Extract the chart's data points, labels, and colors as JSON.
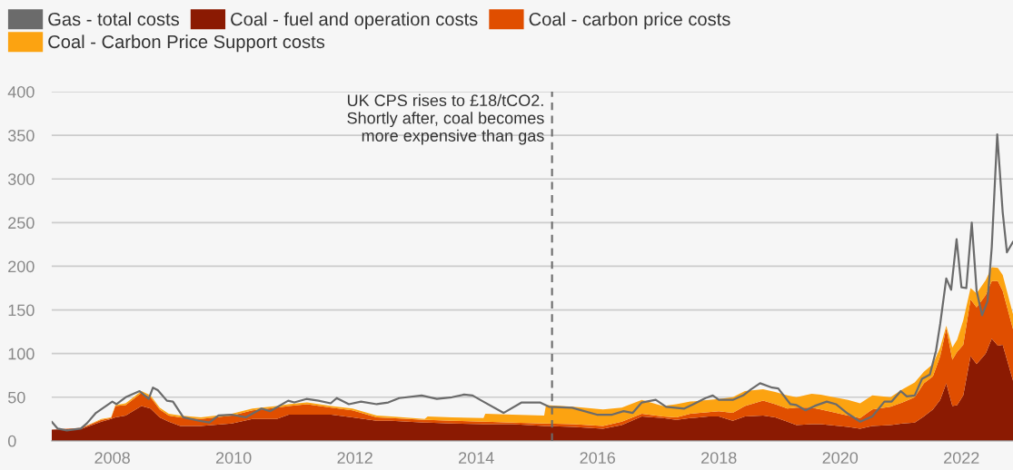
{
  "chart_data": {
    "type": "area",
    "stacked": true,
    "x": [
      2007.0,
      2007.5,
      2007.82,
      2007.98,
      2008.05,
      2008.22,
      2008.48,
      2008.63,
      2008.78,
      2008.93,
      2009.12,
      2009.46,
      2009.97,
      2010.31,
      2010.71,
      2010.91,
      2011.21,
      2011.61,
      2011.96,
      2012.36,
      2012.6,
      2013.15,
      2013.2,
      2013.6,
      2014.12,
      2014.15,
      2014.6,
      2015.12,
      2015.15,
      2015.6,
      2016.09,
      2016.4,
      2016.73,
      2017.08,
      2017.3,
      2017.53,
      2017.83,
      2018.0,
      2018.23,
      2018.43,
      2018.73,
      2018.93,
      2019.13,
      2019.28,
      2019.53,
      2019.68,
      2020.13,
      2020.33,
      2020.53,
      2020.83,
      2021.03,
      2021.23,
      2021.38,
      2021.53,
      2021.65,
      2021.75,
      2021.85,
      2021.93,
      2022.03,
      2022.15,
      2022.25,
      2022.4,
      2022.5,
      2022.6,
      2022.68,
      2022.85
    ],
    "series": [
      {
        "name": "Gas - total costs",
        "type": "line",
        "color": "#6b6b6b",
        "x": [
          2007.0,
          2007.1,
          2007.25,
          2007.48,
          2007.58,
          2007.73,
          2008.0,
          2008.07,
          2008.22,
          2008.45,
          2008.6,
          2008.67,
          2008.75,
          2008.9,
          2009.0,
          2009.17,
          2009.43,
          2009.6,
          2009.75,
          2009.97,
          2010.2,
          2010.46,
          2010.6,
          2010.9,
          2011.0,
          2011.2,
          2011.4,
          2011.6,
          2011.7,
          2011.9,
          2012.1,
          2012.36,
          2012.55,
          2012.73,
          2013.1,
          2013.35,
          2013.6,
          2013.8,
          2013.94,
          2014.09,
          2014.45,
          2014.75,
          2014.9,
          2015.05,
          2015.2,
          2015.58,
          2015.99,
          2016.24,
          2016.43,
          2016.58,
          2016.73,
          2016.96,
          2017.13,
          2017.43,
          2017.58,
          2017.78,
          2017.9,
          2018.0,
          2018.23,
          2018.4,
          2018.53,
          2018.68,
          2018.88,
          2018.98,
          2019.18,
          2019.28,
          2019.43,
          2019.58,
          2019.78,
          2019.93,
          2020.13,
          2020.33,
          2020.53,
          2020.73,
          2020.85,
          2021.0,
          2021.1,
          2021.23,
          2021.35,
          2021.48,
          2021.58,
          2021.65,
          2021.75,
          2021.83,
          2021.92,
          2022.0,
          2022.08,
          2022.17,
          2022.25,
          2022.34,
          2022.43,
          2022.5,
          2022.59,
          2022.68,
          2022.75,
          2022.85
        ],
        "values": [
          22,
          14,
          12,
          14,
          20,
          32,
          45,
          42,
          50,
          57,
          48,
          61,
          58,
          46,
          45,
          27,
          23,
          21,
          29,
          30,
          27,
          37,
          34,
          46,
          44,
          48,
          46,
          43,
          49,
          42,
          45,
          42,
          44,
          49,
          52,
          48,
          50,
          53,
          52,
          46,
          32,
          44,
          44,
          44,
          39,
          38,
          30,
          30,
          34,
          32,
          44,
          47,
          39,
          37,
          42,
          49,
          52,
          47,
          47,
          52,
          59,
          66,
          61,
          60,
          42,
          41,
          35,
          40,
          45,
          42,
          31,
          22,
          28,
          45,
          45,
          57,
          51,
          52,
          71,
          76,
          103,
          134,
          186,
          173,
          231,
          176,
          175,
          250,
          172,
          144,
          160,
          222,
          351,
          262,
          216,
          228
        ]
      },
      {
        "name": "Coal - fuel and operation costs",
        "color": "#8b1a02",
        "values": [
          13,
          14,
          22,
          25,
          27,
          29,
          40,
          37,
          27,
          22,
          17,
          17,
          20,
          25,
          25,
          30,
          30,
          30,
          27,
          23,
          23,
          21,
          21,
          20,
          19,
          19,
          19,
          17,
          17,
          16,
          14,
          18,
          28,
          26,
          24,
          26,
          28,
          28,
          23,
          28,
          29,
          27,
          22,
          18,
          19,
          19,
          16,
          14,
          17,
          18,
          20,
          21,
          28,
          36,
          47,
          66,
          40,
          41,
          52,
          97,
          88,
          100,
          117,
          109,
          110,
          69
        ]
      },
      {
        "name": "Coal - carbon price costs",
        "color": "#e04e00",
        "values": [
          0,
          1,
          2,
          1,
          13,
          12,
          15,
          13,
          9,
          7,
          10,
          8,
          9,
          10,
          13,
          10,
          12,
          8,
          8,
          4,
          3,
          3,
          3,
          3,
          3,
          3,
          2,
          3,
          3,
          3,
          3,
          4,
          3,
          2,
          3,
          5,
          5,
          6,
          9,
          12,
          17,
          15,
          15,
          20,
          19,
          17,
          13,
          12,
          19,
          21,
          24,
          29,
          38,
          38,
          50,
          63,
          53,
          61,
          58,
          65,
          65,
          67,
          66,
          74,
          62,
          59
        ]
      },
      {
        "name": "Coal - Carbon Price Support costs",
        "color": "#fca311",
        "values": [
          0,
          0,
          1,
          1,
          1,
          2,
          2,
          2,
          2,
          2,
          2,
          2,
          2,
          2,
          2,
          2,
          2,
          2,
          2,
          2,
          2,
          1,
          4,
          4,
          4,
          9,
          9,
          9,
          21,
          20,
          19,
          16,
          16,
          12,
          15,
          14,
          14,
          14,
          18,
          17,
          13,
          14,
          15,
          12,
          16,
          17,
          18,
          17,
          16,
          11,
          15,
          17,
          13,
          14,
          10,
          3,
          14,
          14,
          28,
          13,
          16,
          17,
          16,
          15,
          18,
          17
        ]
      }
    ],
    "xlim": [
      2007.0,
      2022.85
    ],
    "xticks": [
      2008,
      2010,
      2012,
      2014,
      2016,
      2018,
      2020,
      2022
    ],
    "ylim": [
      0,
      400
    ],
    "yticks": [
      0,
      50,
      100,
      150,
      200,
      250,
      300,
      350,
      400
    ],
    "grid": "y",
    "legend": "top left",
    "ref_lines": [
      {
        "axis": "x",
        "value": 2015.25,
        "label": "UK CPS rises to £18/tCO2.\nShortly after, coal becomes\nmore expensive than gas",
        "color": "#6b6b6b",
        "line_style": "dashed"
      }
    ]
  }
}
